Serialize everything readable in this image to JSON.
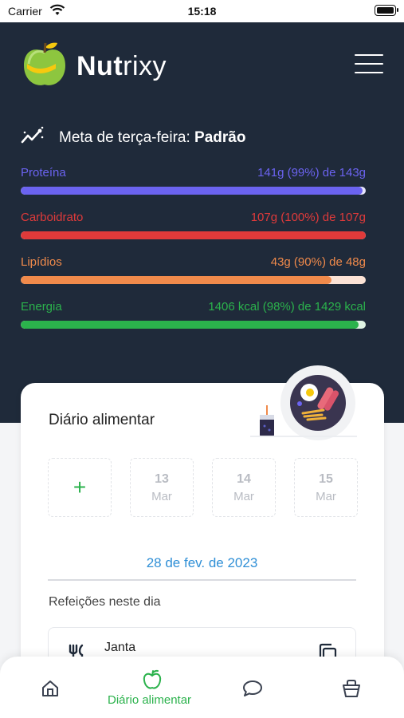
{
  "status_bar": {
    "carrier": "Carrier",
    "time": "15:18"
  },
  "app": {
    "name_bold": "Nut",
    "name_light": "rixy"
  },
  "goal": {
    "prefix": "Meta de terça-feira:",
    "plan": "Padrão"
  },
  "macros": [
    {
      "label": "Proteína",
      "summary": "141g (99%) de 143g",
      "percent": 99,
      "color": "#6b63f0",
      "track": "#e6e5fb"
    },
    {
      "label": "Carboidrato",
      "summary": "107g (100%) de 107g",
      "percent": 100,
      "color": "#e03a3a",
      "track": "#f8dede"
    },
    {
      "label": "Lipídios",
      "summary": "43g (90%) de 48g",
      "percent": 90,
      "color": "#f08a4b",
      "track": "#fbe2d5"
    },
    {
      "label": "Energia",
      "summary": "1406 kcal (98%) de 1429 kcal",
      "percent": 98,
      "color": "#2bb24c",
      "track": "#dff3e3"
    }
  ],
  "diary": {
    "title": "Diário alimentar",
    "add_symbol": "+",
    "days": [
      {
        "num": "13",
        "month": "Mar"
      },
      {
        "num": "14",
        "month": "Mar"
      },
      {
        "num": "15",
        "month": "Mar"
      }
    ],
    "selected_date": "28 de fev. de 2023",
    "meals_label": "Refeições neste dia",
    "meals": [
      {
        "name": "Janta"
      }
    ]
  },
  "tabbar": {
    "active_color": "#2bb24c",
    "items": [
      {
        "icon": "home-icon",
        "label": ""
      },
      {
        "icon": "apple-icon",
        "label": "Diário alimentar"
      },
      {
        "icon": "chat-icon",
        "label": ""
      },
      {
        "icon": "basket-icon",
        "label": ""
      }
    ]
  }
}
